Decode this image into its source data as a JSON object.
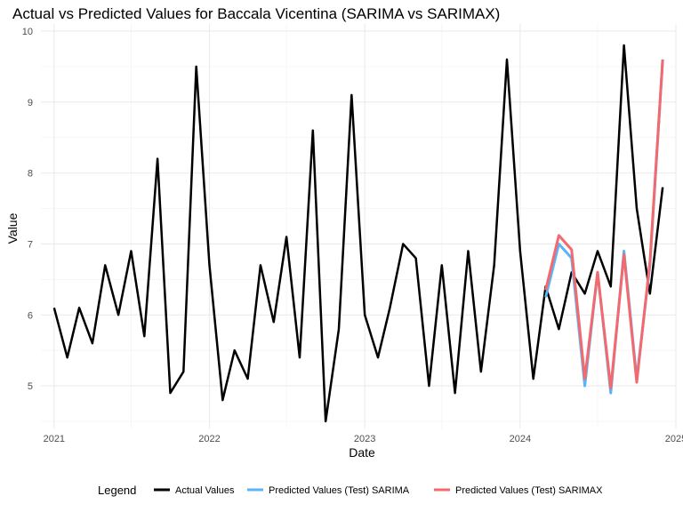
{
  "chart_data": {
    "type": "line",
    "title": "Actual vs Predicted Values for Baccala Vicentina (SARIMA vs SARIMAX)",
    "xlabel": "Date",
    "ylabel": "Value",
    "x_ticks": [
      "2021",
      "2022",
      "2023",
      "2024",
      "2025"
    ],
    "y_ticks": [
      "5",
      "6",
      "7",
      "8",
      "9",
      "10"
    ],
    "xlim": [
      "2020-12-01",
      "2025-01-01"
    ],
    "ylim": [
      4.4,
      10.1
    ],
    "grid": true,
    "legend_title": "Legend",
    "legend_position": "bottom",
    "series": [
      {
        "name": "Actual Values",
        "color": "#000000",
        "points": [
          [
            "2021-01-01",
            6.1
          ],
          [
            "2021-02-01",
            5.4
          ],
          [
            "2021-03-01",
            6.1
          ],
          [
            "2021-04-01",
            5.6
          ],
          [
            "2021-05-01",
            6.7
          ],
          [
            "2021-06-01",
            6.0
          ],
          [
            "2021-07-01",
            6.9
          ],
          [
            "2021-08-01",
            5.7
          ],
          [
            "2021-09-01",
            8.2
          ],
          [
            "2021-10-01",
            4.9
          ],
          [
            "2021-11-01",
            5.2
          ],
          [
            "2021-12-01",
            9.5
          ],
          [
            "2022-01-01",
            6.7
          ],
          [
            "2022-02-01",
            4.8
          ],
          [
            "2022-03-01",
            5.5
          ],
          [
            "2022-04-01",
            5.1
          ],
          [
            "2022-05-01",
            6.7
          ],
          [
            "2022-06-01",
            5.9
          ],
          [
            "2022-07-01",
            7.1
          ],
          [
            "2022-08-01",
            5.4
          ],
          [
            "2022-09-01",
            8.6
          ],
          [
            "2022-10-01",
            4.5
          ],
          [
            "2022-11-01",
            5.8
          ],
          [
            "2022-12-01",
            9.1
          ],
          [
            "2023-01-01",
            6.0
          ],
          [
            "2023-02-01",
            5.4
          ],
          [
            "2023-03-01",
            6.1
          ],
          [
            "2023-04-01",
            7.0
          ],
          [
            "2023-05-01",
            6.8
          ],
          [
            "2023-06-01",
            5.0
          ],
          [
            "2023-07-01",
            6.7
          ],
          [
            "2023-08-01",
            4.9
          ],
          [
            "2023-09-01",
            6.9
          ],
          [
            "2023-10-01",
            5.2
          ],
          [
            "2023-11-01",
            6.7
          ],
          [
            "2023-12-01",
            9.6
          ],
          [
            "2024-01-01",
            6.9
          ],
          [
            "2024-02-01",
            5.1
          ],
          [
            "2024-03-01",
            6.4
          ],
          [
            "2024-04-01",
            5.8
          ],
          [
            "2024-05-01",
            6.6
          ],
          [
            "2024-06-01",
            6.3
          ],
          [
            "2024-07-01",
            6.9
          ],
          [
            "2024-08-01",
            6.4
          ],
          [
            "2024-09-01",
            9.8
          ],
          [
            "2024-10-01",
            7.5
          ],
          [
            "2024-11-01",
            6.3
          ],
          [
            "2024-12-01",
            7.8
          ]
        ]
      },
      {
        "name": "Predicted Values (Test) SARIMA",
        "color": "#5AB4F5",
        "points": [
          [
            "2024-03-01",
            6.25
          ],
          [
            "2024-04-01",
            7.0
          ],
          [
            "2024-05-01",
            6.8
          ],
          [
            "2024-06-01",
            5.0
          ],
          [
            "2024-07-01",
            6.6
          ],
          [
            "2024-08-01",
            4.9
          ],
          [
            "2024-09-01",
            6.9
          ],
          [
            "2024-10-01",
            5.1
          ],
          [
            "2024-11-01",
            6.7
          ],
          [
            "2024-12-01",
            9.6
          ]
        ]
      },
      {
        "name": "Predicted Values (Test) SARIMAX",
        "color": "#F26A6E",
        "points": [
          [
            "2024-03-01",
            6.35
          ],
          [
            "2024-04-01",
            7.12
          ],
          [
            "2024-05-01",
            6.92
          ],
          [
            "2024-06-01",
            5.1
          ],
          [
            "2024-07-01",
            6.6
          ],
          [
            "2024-08-01",
            4.97
          ],
          [
            "2024-09-01",
            6.85
          ],
          [
            "2024-10-01",
            5.05
          ],
          [
            "2024-11-01",
            6.75
          ],
          [
            "2024-12-01",
            9.6
          ]
        ]
      }
    ]
  }
}
